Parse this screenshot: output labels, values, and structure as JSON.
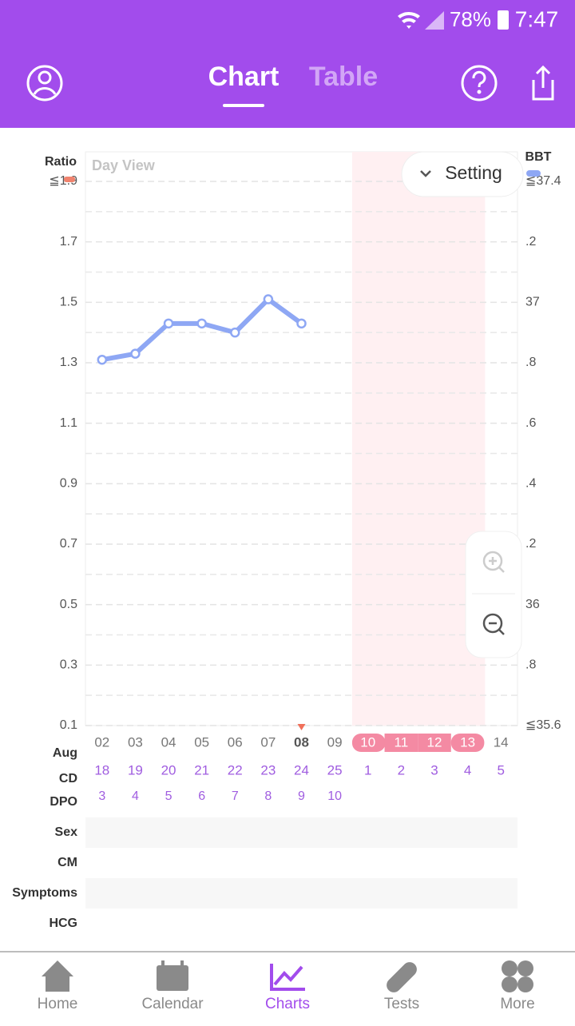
{
  "status_bar": {
    "battery": "78%",
    "time": "7:47"
  },
  "header": {
    "tabs": [
      "Chart",
      "Table"
    ]
  },
  "chart_data": {
    "type": "line",
    "view_label": "Day View",
    "setting": "Setting",
    "y_label": "Ratio",
    "y2_label": "BBT",
    "ylim": [
      0.1,
      1.9
    ],
    "yticks": [
      {
        "value": 1.9,
        "label": "≦1.9"
      },
      1.7,
      1.5,
      1.3,
      1.1,
      0.9,
      0.7,
      0.5,
      0.3,
      0.1
    ],
    "y2lim": [
      35.6,
      37.4
    ],
    "y2ticks": [
      {
        "value": 37.4,
        "label": "≦37.4"
      },
      {
        "value": 37.2,
        "label": ".2"
      },
      37,
      {
        "value": 36.8,
        "label": ".8"
      },
      {
        "value": 36.6,
        "label": ".6"
      },
      {
        "value": 36.4,
        "label": ".4"
      },
      {
        "value": 36.2,
        "label": ".2"
      },
      36,
      {
        "value": 35.8,
        "label": ".8"
      },
      {
        "value": 35.6,
        "label": "≦35.6"
      }
    ],
    "grid": true,
    "month": "Aug",
    "categories": [
      "02",
      "03",
      "04",
      "05",
      "06",
      "07",
      "08",
      "09",
      "10",
      "11",
      "12",
      "13",
      "14"
    ],
    "values": [
      1.31,
      1.33,
      1.43,
      1.43,
      1.4,
      1.51,
      1.43,
      null,
      null,
      null,
      null,
      null,
      null
    ],
    "color": "#8ea7f4",
    "cd_label": "CD",
    "cd": [
      18,
      19,
      20,
      21,
      22,
      23,
      24,
      25,
      1,
      2,
      3,
      4,
      5
    ],
    "dpo_label": "DPO",
    "dpo": [
      3,
      4,
      5,
      6,
      7,
      8,
      9,
      10,
      null,
      null,
      null,
      null,
      null
    ],
    "rows": [
      "Sex",
      "CM",
      "Symptoms",
      "HCG"
    ]
  },
  "nav": [
    "Home",
    "Calendar",
    "Charts",
    "Tests",
    "More"
  ]
}
